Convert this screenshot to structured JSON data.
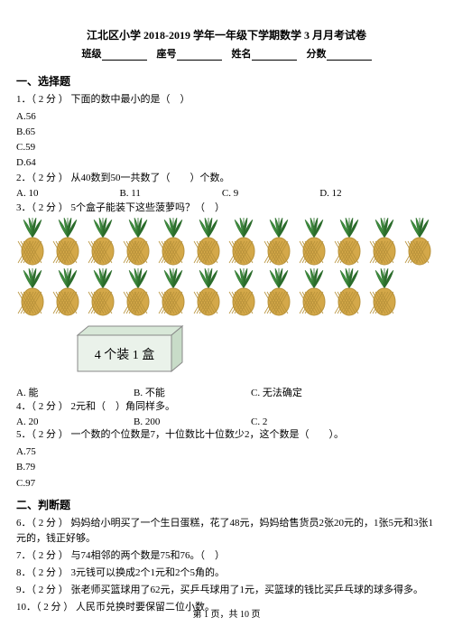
{
  "title": "江北区小学 2018-2019 学年一年级下学期数学 3 月月考试卷",
  "header": {
    "class_label": "班级",
    "seat_label": "座号",
    "name_label": "姓名",
    "score_label": "分数"
  },
  "section1_title": "一、选择题",
  "q1": {
    "text": "1．（ 2 分 ） 下面的数中最小的是（　）",
    "a": "A.56",
    "b": "B.65",
    "c": "C.59",
    "d": "D.64"
  },
  "q2": {
    "text": "2．（ 2 分 ） 从40数到50一共数了（　　）个数。",
    "a": "A. 10",
    "b": "B. 11",
    "c": "C. 9",
    "d": "D. 12"
  },
  "q3": {
    "text": "3．（ 2 分 ） 5个盒子能装下这些菠萝吗？（　）",
    "box_label": "4 个装 1 盒",
    "a": "A. 能",
    "b": "B. 不能",
    "c": "C. 无法确定",
    "pineapple_count_row1": 12,
    "pineapple_count_row2": 11,
    "colors": {
      "leaf": "#3d8b3d",
      "leaf_dark": "#2a6b2a",
      "body": "#d4a849",
      "body_dark": "#b8923a"
    },
    "box_colors": {
      "top": "#d8e8d8",
      "front": "#eaf2ea",
      "stroke": "#888888"
    }
  },
  "q4": {
    "text": "4．（ 2 分 ） 2元和（　）角同样多。",
    "a": "A. 20",
    "b": "B. 200",
    "c": "C. 2"
  },
  "q5": {
    "text": "5．（ 2 分 ） 一个数的个位数是7，十位数比十位数少2，这个数是（　　）。",
    "a": "A.75",
    "b": "B.79",
    "c": "C.97"
  },
  "section2_title": "二、判断题",
  "q6": "6．（ 2 分 ） 妈妈给小明买了一个生日蛋糕，花了48元，妈妈给售货员2张20元的，1张5元和3张1元的，钱正好够。",
  "q7": "7．（ 2 分 ） 与74相邻的两个数是75和76。（　）",
  "q8": "8．（ 2 分 ） 3元钱可以换成2个1元和2个5角的。",
  "q9": "9．（ 2 分 ） 张老师买篮球用了62元，买乒乓球用了1元，买篮球的钱比买乒乓球的球多得多。",
  "q10": "10．（ 2 分 ） 人民币兑换时要保留二位小数。",
  "footer": "第 1 页，共 10 页"
}
